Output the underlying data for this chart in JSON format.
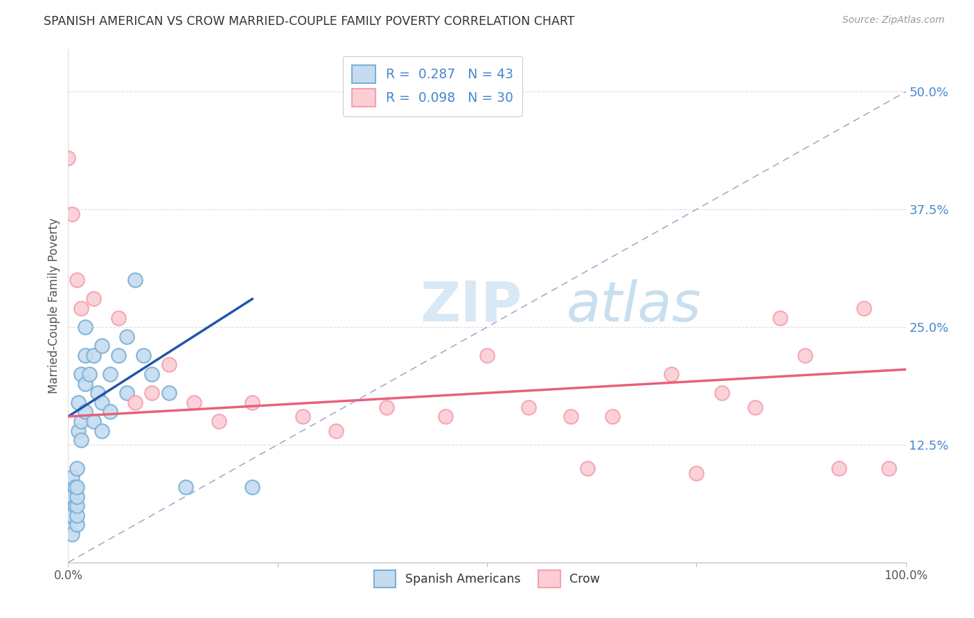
{
  "title": "SPANISH AMERICAN VS CROW MARRIED-COUPLE FAMILY POVERTY CORRELATION CHART",
  "source": "Source: ZipAtlas.com",
  "ylabel": "Married-Couple Family Poverty",
  "ytick_labels": [
    "12.5%",
    "25.0%",
    "37.5%",
    "50.0%"
  ],
  "ytick_values": [
    0.125,
    0.25,
    0.375,
    0.5
  ],
  "xlim": [
    0.0,
    1.0
  ],
  "ylim": [
    0.0,
    0.545
  ],
  "R_spanish": "0.287",
  "N_spanish": "43",
  "R_crow": "0.098",
  "N_crow": "30",
  "blue_edge": "#7BAFD4",
  "blue_fill": "#C5DCF0",
  "pink_edge": "#F4A0B0",
  "pink_fill": "#FCCDD5",
  "trendline_blue": "#2255AA",
  "trendline_pink": "#E8607A",
  "diag_color": "#AAAACC",
  "grid_color": "#DDDDDD",
  "watermark_color": "#D8E8F5",
  "ytick_color": "#4488CC",
  "spanish_x": [
    0.0,
    0.0,
    0.0,
    0.0,
    0.005,
    0.005,
    0.005,
    0.005,
    0.008,
    0.008,
    0.01,
    0.01,
    0.01,
    0.01,
    0.01,
    0.01,
    0.012,
    0.012,
    0.015,
    0.015,
    0.015,
    0.02,
    0.02,
    0.02,
    0.02,
    0.025,
    0.03,
    0.03,
    0.035,
    0.04,
    0.04,
    0.04,
    0.05,
    0.05,
    0.06,
    0.07,
    0.07,
    0.08,
    0.09,
    0.1,
    0.12,
    0.14,
    0.22
  ],
  "spanish_y": [
    0.04,
    0.05,
    0.06,
    0.07,
    0.03,
    0.05,
    0.07,
    0.09,
    0.06,
    0.08,
    0.04,
    0.05,
    0.06,
    0.07,
    0.08,
    0.1,
    0.14,
    0.17,
    0.13,
    0.15,
    0.2,
    0.16,
    0.19,
    0.22,
    0.25,
    0.2,
    0.15,
    0.22,
    0.18,
    0.14,
    0.17,
    0.23,
    0.16,
    0.2,
    0.22,
    0.18,
    0.24,
    0.3,
    0.22,
    0.2,
    0.18,
    0.08,
    0.08
  ],
  "crow_x": [
    0.0,
    0.005,
    0.01,
    0.015,
    0.03,
    0.06,
    0.08,
    0.1,
    0.12,
    0.15,
    0.18,
    0.22,
    0.28,
    0.32,
    0.38,
    0.45,
    0.5,
    0.55,
    0.6,
    0.62,
    0.65,
    0.72,
    0.75,
    0.78,
    0.82,
    0.85,
    0.88,
    0.92,
    0.95,
    0.98
  ],
  "crow_y": [
    0.43,
    0.37,
    0.3,
    0.27,
    0.28,
    0.26,
    0.17,
    0.18,
    0.21,
    0.17,
    0.15,
    0.17,
    0.155,
    0.14,
    0.165,
    0.155,
    0.22,
    0.165,
    0.155,
    0.1,
    0.155,
    0.2,
    0.095,
    0.18,
    0.165,
    0.26,
    0.22,
    0.1,
    0.27,
    0.1
  ],
  "blue_trend_x0": 0.0,
  "blue_trend_x1": 0.22,
  "blue_trend_y0": 0.155,
  "blue_trend_y1": 0.28,
  "pink_trend_x0": 0.0,
  "pink_trend_x1": 1.0,
  "pink_trend_y0": 0.155,
  "pink_trend_y1": 0.205
}
